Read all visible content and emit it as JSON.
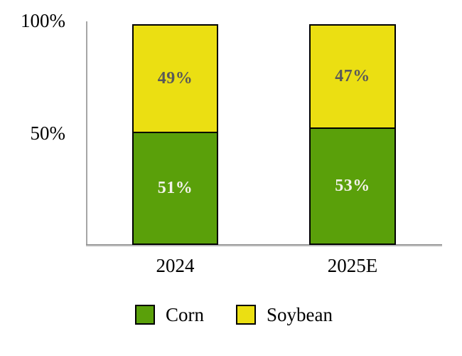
{
  "colors": {
    "corn_green": "#5aa00a",
    "soybean_yellow": "#ebdf12",
    "segment_border": "#000000",
    "axis_gray": "#a6a6a6",
    "label_on_yellow": "#595959",
    "label_on_green": "#f2f2e9",
    "text_black": "#000000",
    "background": "#ffffff"
  },
  "y_axis": {
    "tick_top": "100%",
    "tick_mid": "50%"
  },
  "chart_data": {
    "type": "bar",
    "subtype": "stacked-100-percent-column",
    "title": "",
    "xlabel": "",
    "ylabel": "",
    "ylim": [
      0,
      100
    ],
    "y_tick_labels": [
      "50%",
      "100%"
    ],
    "grid": false,
    "legend_position": "bottom",
    "categories": [
      "2024",
      "2025E"
    ],
    "series": [
      {
        "name": "Corn",
        "color": "#5aa00a",
        "values": [
          51,
          53
        ],
        "labels": [
          "51%",
          "53%"
        ]
      },
      {
        "name": "Soybean",
        "color": "#ebdf12",
        "values": [
          49,
          47
        ],
        "labels": [
          "49%",
          "47%"
        ]
      }
    ]
  }
}
